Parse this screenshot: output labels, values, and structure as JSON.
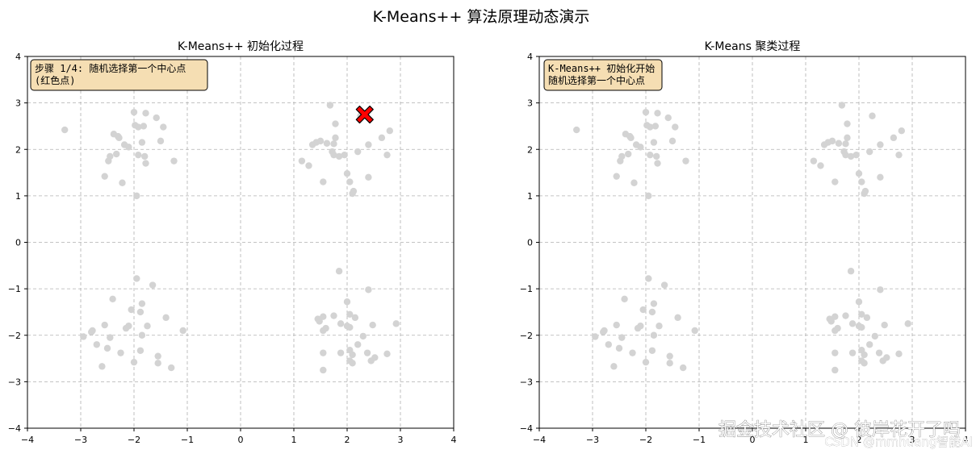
{
  "figure_title": "K-Means++ 算法原理动态演示",
  "watermark": {
    "main": "掘金技术社区 @ 彼岸花开了吗",
    "sub": "CSDN @mmhuang智能AI"
  },
  "colors": {
    "points": "#d3d3d3",
    "center": "#ff0000",
    "grid": "#b0b0b0",
    "annotation_bg": "#f5deb3"
  },
  "chart_data": [
    {
      "type": "scatter",
      "title": "K-Means++ 初始化过程",
      "annotation_lines": [
        "步骤 1/4: 随机选择第一个中心点",
        "(红色点)"
      ],
      "xlim": [
        -4,
        4
      ],
      "ylim": [
        -4,
        4
      ],
      "xticks": [
        -4,
        -3,
        -2,
        -1,
        0,
        1,
        2,
        3,
        4
      ],
      "yticks": [
        -4,
        -3,
        -2,
        -1,
        0,
        1,
        2,
        3,
        4
      ],
      "grid": true,
      "points": [
        [
          -3.3,
          2.42
        ],
        [
          -2.55,
          1.42
        ],
        [
          -2.45,
          1.85
        ],
        [
          -2.48,
          1.75
        ],
        [
          -2.38,
          2.33
        ],
        [
          -2.33,
          1.9
        ],
        [
          -2.3,
          2.28
        ],
        [
          -2.28,
          2.25
        ],
        [
          -2.22,
          1.28
        ],
        [
          -2.18,
          2.1
        ],
        [
          -2.1,
          2.05
        ],
        [
          -2.0,
          2.8
        ],
        [
          -1.98,
          2.52
        ],
        [
          -1.92,
          1.88
        ],
        [
          -1.95,
          1.0
        ],
        [
          -1.92,
          2.48
        ],
        [
          -1.85,
          2.15
        ],
        [
          -1.82,
          2.5
        ],
        [
          -1.8,
          1.85
        ],
        [
          -1.78,
          1.7
        ],
        [
          -1.78,
          2.78
        ],
        [
          -1.58,
          2.68
        ],
        [
          -1.5,
          2.18
        ],
        [
          -1.45,
          2.48
        ],
        [
          -1.25,
          1.75
        ],
        [
          2.25,
          2.72
        ],
        [
          1.68,
          2.95
        ],
        [
          1.78,
          2.55
        ],
        [
          1.78,
          2.25
        ],
        [
          1.75,
          2.12
        ],
        [
          1.72,
          1.95
        ],
        [
          1.62,
          2.13
        ],
        [
          1.5,
          2.18
        ],
        [
          1.42,
          2.15
        ],
        [
          1.35,
          2.1
        ],
        [
          1.28,
          1.65
        ],
        [
          1.15,
          1.75
        ],
        [
          1.55,
          1.3
        ],
        [
          1.75,
          1.88
        ],
        [
          1.85,
          1.85
        ],
        [
          1.95,
          1.88
        ],
        [
          2.0,
          1.48
        ],
        [
          2.05,
          1.3
        ],
        [
          2.1,
          1.05
        ],
        [
          2.12,
          1.1
        ],
        [
          2.2,
          1.95
        ],
        [
          2.4,
          1.4
        ],
        [
          2.4,
          2.1
        ],
        [
          2.65,
          2.25
        ],
        [
          2.75,
          1.88
        ],
        [
          2.8,
          2.4
        ],
        [
          -1.95,
          -0.78
        ],
        [
          -1.65,
          -0.92
        ],
        [
          -1.85,
          -1.32
        ],
        [
          -1.88,
          -1.5
        ],
        [
          -2.05,
          -1.45
        ],
        [
          -2.1,
          -1.8
        ],
        [
          -2.15,
          -1.85
        ],
        [
          -2.4,
          -1.22
        ],
        [
          -2.45,
          -2.05
        ],
        [
          -2.55,
          -1.78
        ],
        [
          -2.5,
          -2.28
        ],
        [
          -2.6,
          -2.67
        ],
        [
          -2.7,
          -2.2
        ],
        [
          -2.8,
          -1.93
        ],
        [
          -2.78,
          -1.9
        ],
        [
          -2.95,
          -2.03
        ],
        [
          -2.25,
          -2.38
        ],
        [
          -2.0,
          -2.58
        ],
        [
          -1.88,
          -2.33
        ],
        [
          -1.85,
          -2.0
        ],
        [
          -1.75,
          -1.8
        ],
        [
          -1.55,
          -2.45
        ],
        [
          -1.55,
          -2.6
        ],
        [
          -1.4,
          -1.62
        ],
        [
          -1.3,
          -2.7
        ],
        [
          -1.08,
          -1.9
        ],
        [
          1.85,
          -0.62
        ],
        [
          2.0,
          -1.28
        ],
        [
          2.4,
          -1.02
        ],
        [
          2.05,
          -1.55
        ],
        [
          2.15,
          -1.62
        ],
        [
          1.75,
          -1.58
        ],
        [
          1.55,
          -1.6
        ],
        [
          1.48,
          -1.7
        ],
        [
          1.45,
          -1.65
        ],
        [
          1.55,
          -1.9
        ],
        [
          1.6,
          -1.85
        ],
        [
          1.88,
          -1.75
        ],
        [
          2.0,
          -1.8
        ],
        [
          2.05,
          -1.83
        ],
        [
          2.48,
          -1.78
        ],
        [
          2.3,
          -2.02
        ],
        [
          2.2,
          -2.2
        ],
        [
          2.05,
          -2.32
        ],
        [
          2.1,
          -2.42
        ],
        [
          1.88,
          -2.38
        ],
        [
          1.55,
          -2.38
        ],
        [
          2.05,
          -2.55
        ],
        [
          2.1,
          -2.6
        ],
        [
          2.38,
          -2.38
        ],
        [
          2.52,
          -2.48
        ],
        [
          2.45,
          -2.55
        ],
        [
          1.55,
          -2.75
        ],
        [
          2.75,
          -2.4
        ],
        [
          2.92,
          -1.75
        ]
      ],
      "centers": [
        [
          2.33,
          2.75
        ]
      ]
    },
    {
      "type": "scatter",
      "title": "K-Means 聚类过程",
      "annotation_lines": [
        "K-Means++ 初始化开始",
        "随机选择第一个中心点"
      ],
      "xlim": [
        -4,
        4
      ],
      "ylim": [
        -4,
        4
      ],
      "xticks": [
        -4,
        -3,
        -2,
        -1,
        0,
        1,
        2,
        3,
        4
      ],
      "yticks": [
        -4,
        -3,
        -2,
        -1,
        0,
        1,
        2,
        3,
        4
      ],
      "grid": true,
      "points": [
        [
          -3.3,
          2.42
        ],
        [
          -2.55,
          1.42
        ],
        [
          -2.45,
          1.85
        ],
        [
          -2.48,
          1.75
        ],
        [
          -2.38,
          2.33
        ],
        [
          -2.33,
          1.9
        ],
        [
          -2.3,
          2.28
        ],
        [
          -2.28,
          2.25
        ],
        [
          -2.22,
          1.28
        ],
        [
          -2.18,
          2.1
        ],
        [
          -2.1,
          2.05
        ],
        [
          -2.0,
          2.8
        ],
        [
          -1.98,
          2.52
        ],
        [
          -1.92,
          1.88
        ],
        [
          -1.95,
          1.0
        ],
        [
          -1.92,
          2.48
        ],
        [
          -1.85,
          2.15
        ],
        [
          -1.82,
          2.5
        ],
        [
          -1.8,
          1.85
        ],
        [
          -1.78,
          1.7
        ],
        [
          -1.78,
          2.78
        ],
        [
          -1.58,
          2.68
        ],
        [
          -1.5,
          2.18
        ],
        [
          -1.45,
          2.48
        ],
        [
          -1.25,
          1.75
        ],
        [
          2.25,
          2.72
        ],
        [
          1.68,
          2.95
        ],
        [
          1.78,
          2.55
        ],
        [
          1.78,
          2.25
        ],
        [
          1.75,
          2.12
        ],
        [
          1.72,
          1.95
        ],
        [
          1.62,
          2.13
        ],
        [
          1.5,
          2.18
        ],
        [
          1.42,
          2.15
        ],
        [
          1.35,
          2.1
        ],
        [
          1.28,
          1.65
        ],
        [
          1.15,
          1.75
        ],
        [
          1.55,
          1.3
        ],
        [
          1.75,
          1.88
        ],
        [
          1.85,
          1.85
        ],
        [
          1.95,
          1.88
        ],
        [
          2.0,
          1.48
        ],
        [
          2.05,
          1.3
        ],
        [
          2.1,
          1.05
        ],
        [
          2.12,
          1.1
        ],
        [
          2.2,
          1.95
        ],
        [
          2.4,
          1.4
        ],
        [
          2.4,
          2.1
        ],
        [
          2.65,
          2.25
        ],
        [
          2.75,
          1.88
        ],
        [
          2.8,
          2.4
        ],
        [
          -1.95,
          -0.78
        ],
        [
          -1.65,
          -0.92
        ],
        [
          -1.85,
          -1.32
        ],
        [
          -1.88,
          -1.5
        ],
        [
          -2.05,
          -1.45
        ],
        [
          -2.1,
          -1.8
        ],
        [
          -2.15,
          -1.85
        ],
        [
          -2.4,
          -1.22
        ],
        [
          -2.45,
          -2.05
        ],
        [
          -2.55,
          -1.78
        ],
        [
          -2.5,
          -2.28
        ],
        [
          -2.6,
          -2.67
        ],
        [
          -2.7,
          -2.2
        ],
        [
          -2.8,
          -1.93
        ],
        [
          -2.78,
          -1.9
        ],
        [
          -2.95,
          -2.03
        ],
        [
          -2.25,
          -2.38
        ],
        [
          -2.0,
          -2.58
        ],
        [
          -1.88,
          -2.33
        ],
        [
          -1.85,
          -2.0
        ],
        [
          -1.75,
          -1.8
        ],
        [
          -1.55,
          -2.45
        ],
        [
          -1.55,
          -2.6
        ],
        [
          -1.4,
          -1.62
        ],
        [
          -1.3,
          -2.7
        ],
        [
          -1.08,
          -1.9
        ],
        [
          1.85,
          -0.62
        ],
        [
          2.0,
          -1.28
        ],
        [
          2.4,
          -1.02
        ],
        [
          2.05,
          -1.55
        ],
        [
          2.15,
          -1.62
        ],
        [
          1.75,
          -1.58
        ],
        [
          1.55,
          -1.6
        ],
        [
          1.48,
          -1.7
        ],
        [
          1.45,
          -1.65
        ],
        [
          1.55,
          -1.9
        ],
        [
          1.6,
          -1.85
        ],
        [
          1.88,
          -1.75
        ],
        [
          2.0,
          -1.8
        ],
        [
          2.05,
          -1.83
        ],
        [
          2.48,
          -1.78
        ],
        [
          2.3,
          -2.02
        ],
        [
          2.2,
          -2.2
        ],
        [
          2.05,
          -2.32
        ],
        [
          2.1,
          -2.42
        ],
        [
          1.88,
          -2.38
        ],
        [
          1.55,
          -2.38
        ],
        [
          2.05,
          -2.55
        ],
        [
          2.1,
          -2.6
        ],
        [
          2.38,
          -2.38
        ],
        [
          2.52,
          -2.48
        ],
        [
          2.45,
          -2.55
        ],
        [
          1.55,
          -2.75
        ],
        [
          2.75,
          -2.4
        ],
        [
          2.92,
          -1.75
        ]
      ],
      "centers": []
    }
  ]
}
